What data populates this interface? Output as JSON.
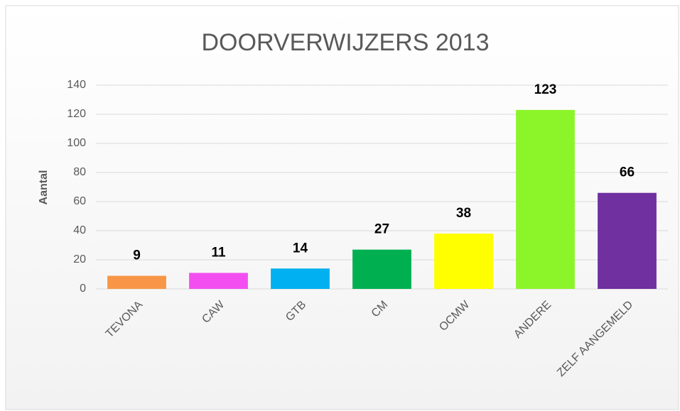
{
  "chart_data": {
    "type": "bar",
    "title": "DOORVERWIJZERS 2013",
    "y_label": "Aantal",
    "categories": [
      "TEVONA",
      "CAW",
      "GTB",
      "CM",
      "OCMW",
      "ANDERE",
      "ZELF AANGEMELD"
    ],
    "values": [
      9,
      11,
      14,
      27,
      38,
      123,
      66
    ],
    "colors": [
      "#f79646",
      "#f34ff0",
      "#00b0f0",
      "#00b050",
      "#ffff00",
      "#8cf52a",
      "#7030a0"
    ],
    "ylim": [
      0,
      140
    ],
    "yticks": [
      0,
      20,
      40,
      60,
      80,
      100,
      120,
      140
    ],
    "grid": true
  }
}
